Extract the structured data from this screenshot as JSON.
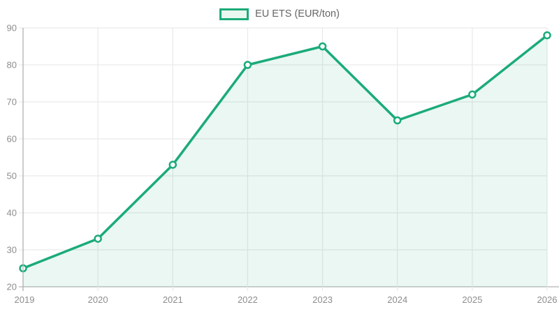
{
  "chart_data": {
    "type": "line",
    "categories": [
      "2019",
      "2020",
      "2021",
      "2022",
      "2023",
      "2024",
      "2025",
      "2026"
    ],
    "series": [
      {
        "name": "EU ETS (EUR/ton)",
        "values": [
          25,
          33,
          53,
          80,
          85,
          65,
          72,
          88
        ]
      }
    ],
    "title": "",
    "xlabel": "",
    "ylabel": "",
    "ylim": [
      20,
      90
    ],
    "y_tick_step": 10,
    "grid": true,
    "legend_position": "top-center",
    "area_fill": true,
    "markers": "open-circle"
  },
  "colors": {
    "line": "#1bab79",
    "area_fill_rgba": "rgba(27,171,121,0.09)",
    "marker_fill": "#ffffff",
    "grid": "#e9e9e9",
    "axis": "#b4b4b4",
    "tick_label": "#8d8d8d",
    "legend_text": "#666666",
    "background": "#ffffff"
  }
}
